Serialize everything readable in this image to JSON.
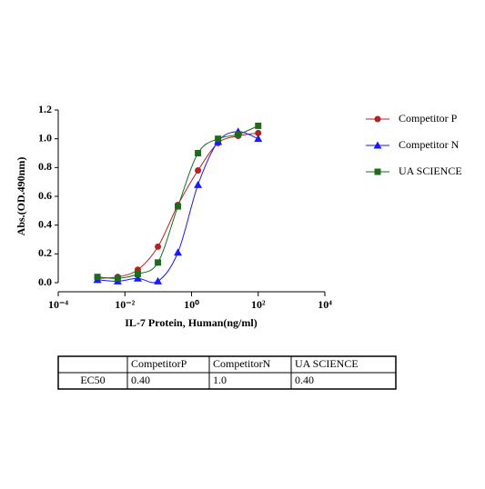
{
  "chart_data": {
    "type": "scatter",
    "log_x": true,
    "x_label": "IL-7 Protein, Human(ng/ml)",
    "y_label": "Abs.(OD.490nm)",
    "x": [
      0.0015,
      0.0061,
      0.0244,
      0.098,
      0.39,
      1.56,
      6.25,
      25,
      100
    ],
    "series": [
      {
        "name": "Competitor P",
        "color": "#b22222",
        "marker": "circle",
        "values": [
          0.03,
          0.04,
          0.09,
          0.25,
          0.54,
          0.78,
          0.97,
          1.02,
          1.04
        ]
      },
      {
        "name": "Competitor N",
        "color": "#1a1aff",
        "marker": "triangle",
        "values": [
          0.02,
          0.01,
          0.03,
          0.01,
          0.21,
          0.68,
          0.98,
          1.05,
          1.0
        ]
      },
      {
        "name": "UA SCIENCE",
        "color": "#1e6b1e",
        "marker": "square",
        "values": [
          0.04,
          0.03,
          0.06,
          0.14,
          0.53,
          0.9,
          1.0,
          1.03,
          1.09
        ]
      }
    ],
    "xlim": [
      0.0001,
      10000
    ],
    "xticks": [
      {
        "value": 0.0001,
        "label": "10⁻⁴"
      },
      {
        "value": 0.01,
        "label": "10⁻²"
      },
      {
        "value": 1,
        "label": "10⁰"
      },
      {
        "value": 100,
        "label": "10²"
      },
      {
        "value": 10000,
        "label": "10⁴"
      }
    ],
    "ylim": [
      0,
      1.2
    ],
    "yticks": [
      {
        "value": 0,
        "label": "0.0"
      },
      {
        "value": 0.2,
        "label": "0.2"
      },
      {
        "value": 0.4,
        "label": "0.4"
      },
      {
        "value": 0.6,
        "label": "0.6"
      },
      {
        "value": 0.8,
        "label": "0.8"
      },
      {
        "value": 1,
        "label": "1.0"
      },
      {
        "value": 1.2,
        "label": "1.2"
      }
    ],
    "grid": false,
    "legend": "right"
  },
  "table": {
    "columns": [
      "CompetitorP",
      "CompetitorN",
      "UA SCIENCE"
    ],
    "rows": [
      [
        "EC50",
        "0.40",
        "1.0",
        "0.40"
      ]
    ]
  }
}
